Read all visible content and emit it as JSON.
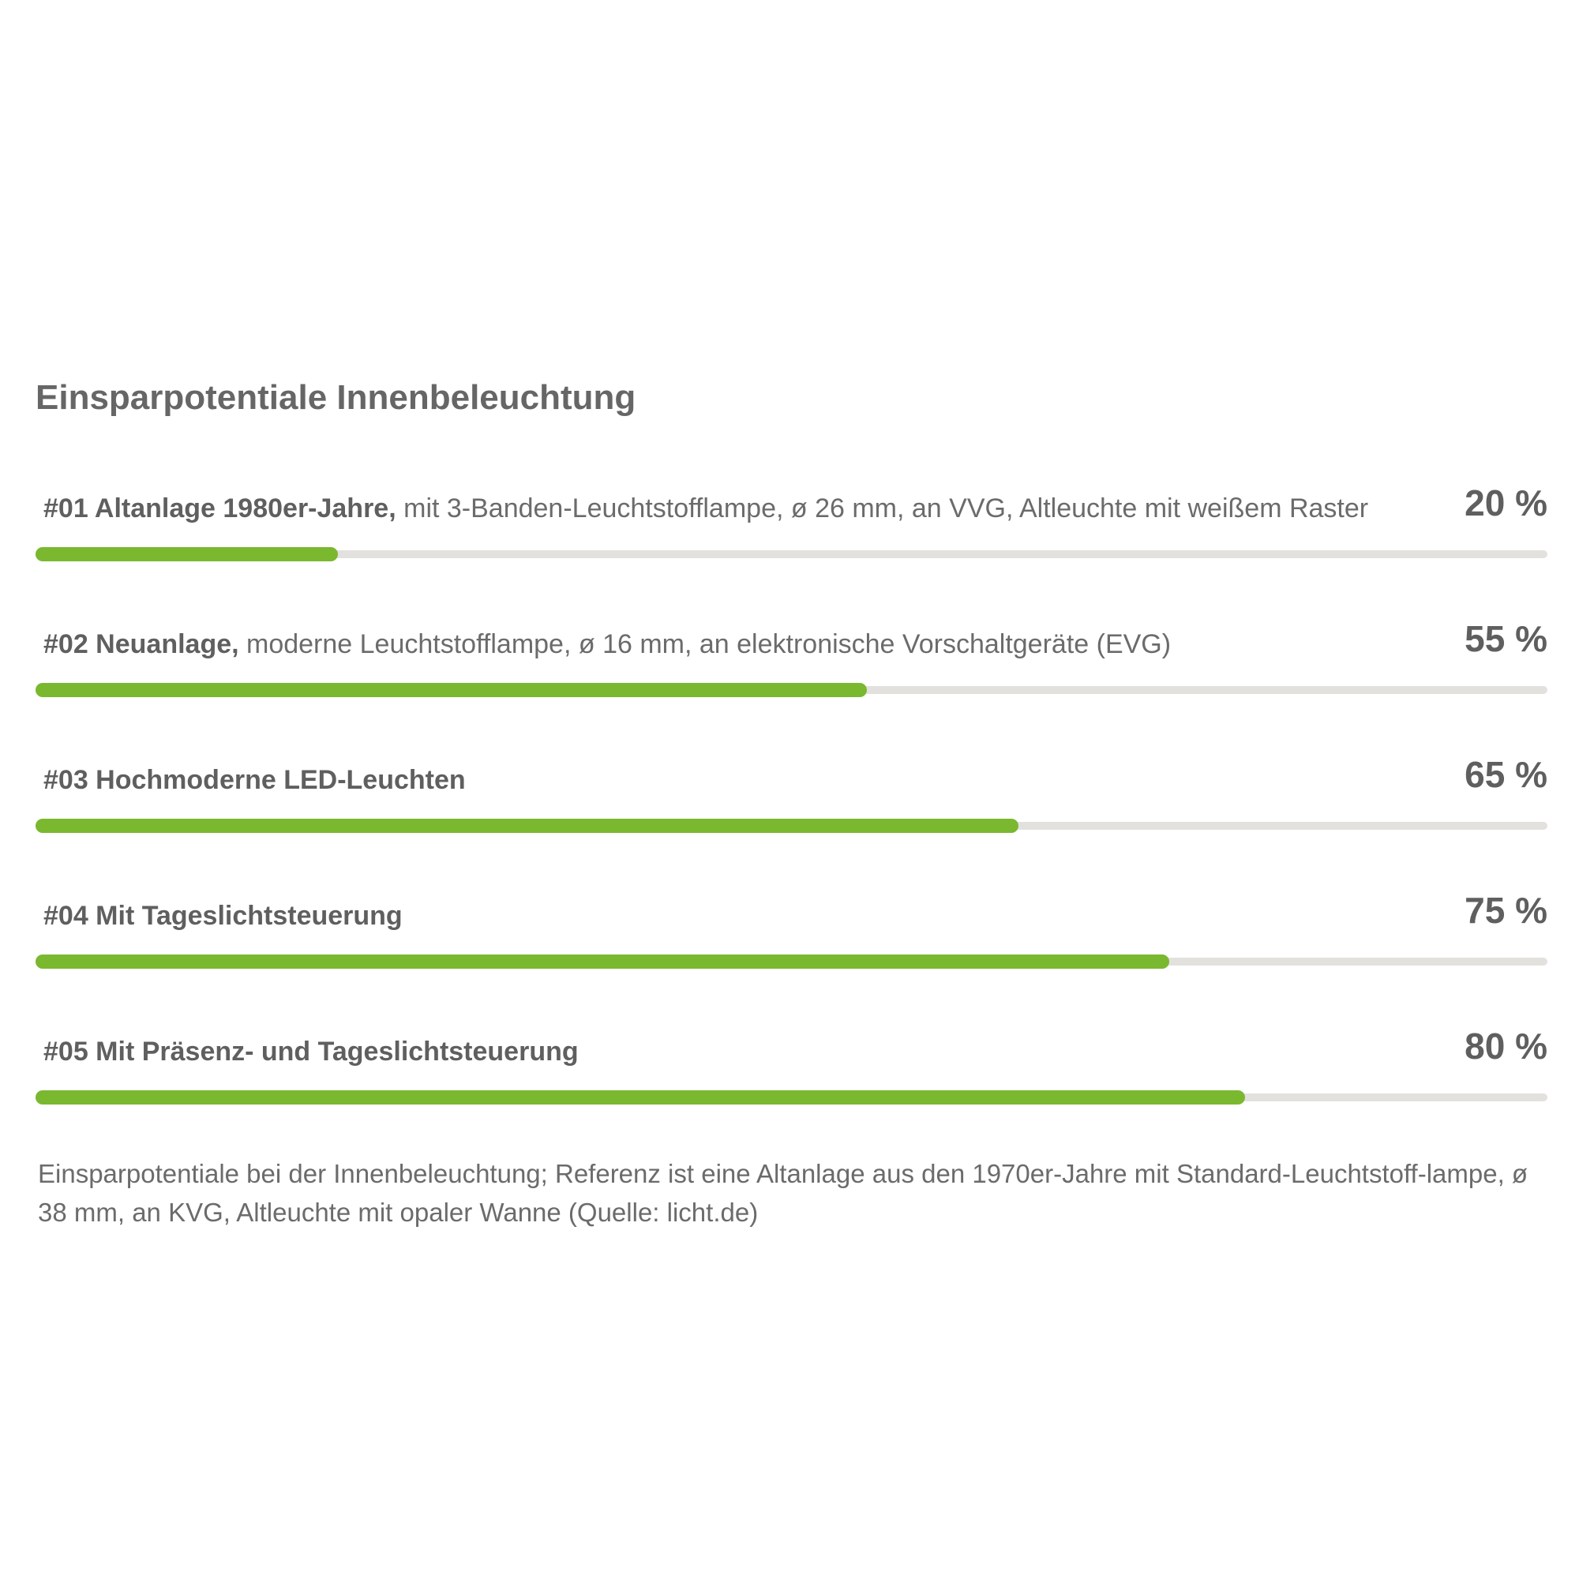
{
  "chart_data": {
    "type": "bar",
    "orientation": "horizontal",
    "title": "Einsparpotentiale Innenbeleuchtung",
    "xlim": [
      0,
      100
    ],
    "unit": "%",
    "grid": false,
    "legend": "none",
    "categories": [
      {
        "label": "#01 Altanlage 1980er-Jahre,",
        "description": " mit 3-Banden-Leuchtstofflampe, ø 26 mm, an VVG, Altleuchte mit weißem Raster",
        "value": 20,
        "value_label": "20 %"
      },
      {
        "label": "#02 Neuanlage,",
        "description": " moderne Leuchtstofflampe, ø 16 mm, an elektronische Vorschaltgeräte (EVG)",
        "value": 55,
        "value_label": "55 %"
      },
      {
        "label": "#03 Hochmoderne LED-Leuchten",
        "description": "",
        "value": 65,
        "value_label": "65 %"
      },
      {
        "label": "#04 Mit Tageslichtsteuerung",
        "description": "",
        "value": 75,
        "value_label": "75 %"
      },
      {
        "label": "#05 Mit Präsenz- und Tageslichtsteuerung",
        "description": "",
        "value": 80,
        "value_label": "80 %"
      }
    ],
    "colors": {
      "bar": "#7ab82f",
      "track": "#e3e1de"
    }
  },
  "caption": "Einsparpotentiale bei der Innenbeleuchtung; Referenz ist eine Altanlage aus den 1970er-Jahre mit Standard-Leuchtstoff-lampe, ø 38 mm, an KVG, Altleuchte mit opaler Wanne (Quelle: licht.de)"
}
